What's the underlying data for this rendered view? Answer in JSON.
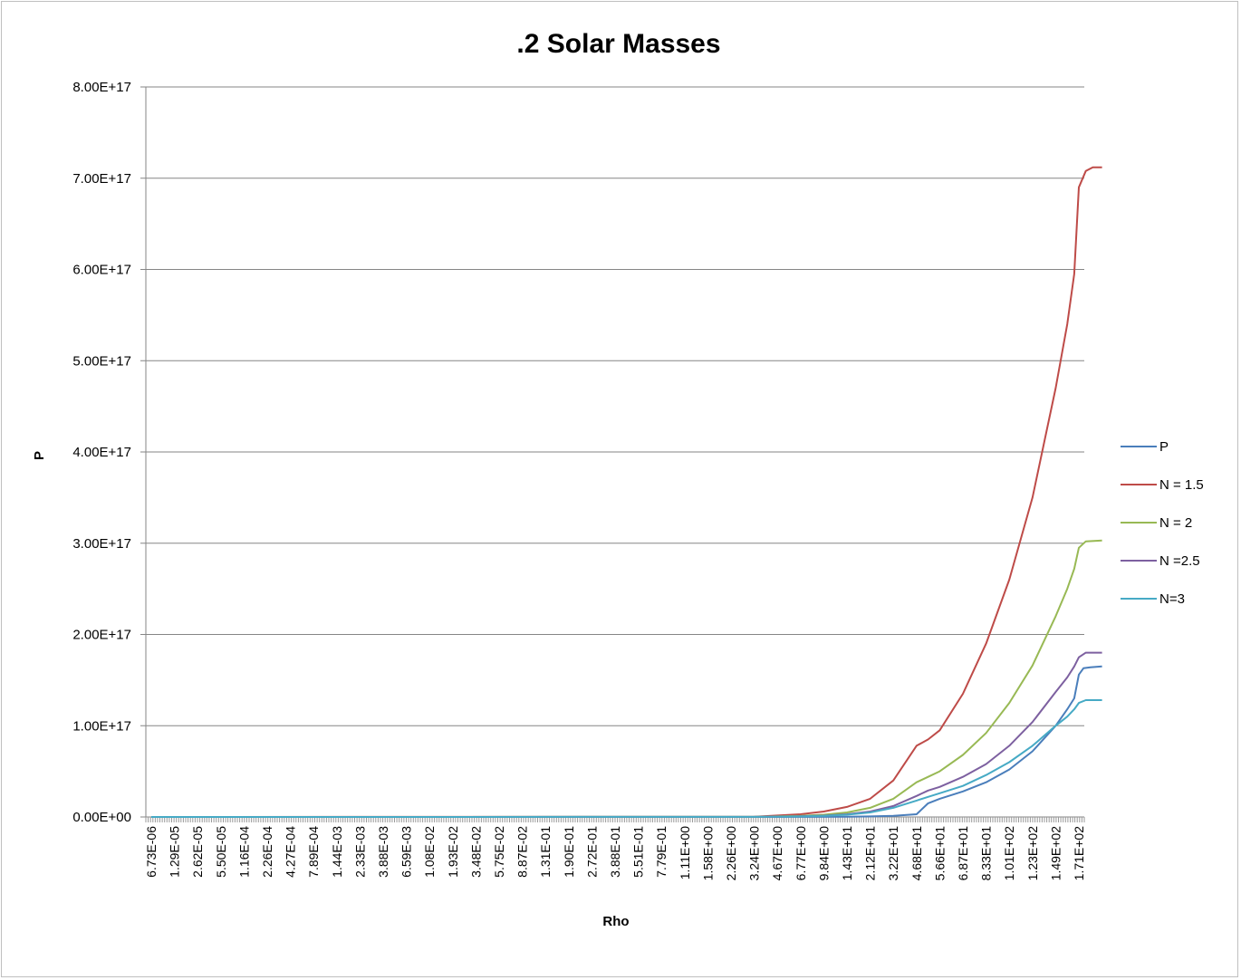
{
  "chart_data": {
    "type": "line",
    "title": ".2 Solar Masses",
    "xlabel": "Rho",
    "ylabel": "P",
    "ylim": [
      0,
      8e+17
    ],
    "yticks": [
      "0.00E+00",
      "1.00E+17",
      "2.00E+17",
      "3.00E+17",
      "4.00E+17",
      "5.00E+17",
      "6.00E+17",
      "7.00E+17",
      "8.00E+17"
    ],
    "x_tick_labels": [
      "6.73E-06",
      "1.29E-05",
      "2.62E-05",
      "5.50E-05",
      "1.16E-04",
      "2.26E-04",
      "4.27E-04",
      "7.89E-04",
      "1.44E-03",
      "2.33E-03",
      "3.88E-03",
      "6.59E-03",
      "1.08E-02",
      "1.93E-02",
      "3.48E-02",
      "5.75E-02",
      "8.87E-02",
      "1.31E-01",
      "1.90E-01",
      "2.72E-01",
      "3.88E-01",
      "5.51E-01",
      "7.79E-01",
      "1.11E+00",
      "1.58E+00",
      "2.26E+00",
      "3.24E+00",
      "4.67E+00",
      "6.77E+00",
      "9.84E+00",
      "1.43E+01",
      "2.12E+01",
      "3.22E+01",
      "4.68E+01",
      "5.66E+01",
      "6.87E+01",
      "8.33E+01",
      "1.01E+02",
      "1.23E+02",
      "1.49E+02",
      "1.71E+02"
    ],
    "grid": true,
    "legend_position": "right",
    "series": [
      {
        "name": "P",
        "color": "#4a7ebb",
        "points": [
          [
            0,
            0
          ],
          [
            26,
            30000000000000.0
          ],
          [
            28,
            100000000000000.0
          ],
          [
            30,
            300000000000000.0
          ],
          [
            31,
            600000000000000.0
          ],
          [
            32,
            1200000000000000.0
          ],
          [
            33,
            3000000000000000.0
          ],
          [
            33.5,
            1.5e+16
          ],
          [
            34,
            2e+16
          ],
          [
            35,
            2.8e+16
          ],
          [
            36,
            3.8e+16
          ],
          [
            37,
            5.2e+16
          ],
          [
            38,
            7.2e+16
          ],
          [
            39,
            1e+17
          ],
          [
            39.5,
            1.18e+17
          ],
          [
            39.8,
            1.3e+17
          ],
          [
            40,
            1.56e+17
          ],
          [
            40.2,
            1.63e+17
          ],
          [
            40.5,
            1.64e+17
          ],
          [
            41,
            1.65e+17
          ]
        ]
      },
      {
        "name": "N = 1.5",
        "color": "#be4b48",
        "points": [
          [
            0,
            0
          ],
          [
            26,
            200000000000000.0
          ],
          [
            28,
            3000000000000000.0
          ],
          [
            29,
            6000000000000000.0
          ],
          [
            30,
            1.1e+16
          ],
          [
            31,
            2e+16
          ],
          [
            32,
            4e+16
          ],
          [
            33,
            7.8e+16
          ],
          [
            33.5,
            8.5e+16
          ],
          [
            34,
            9.5e+16
          ],
          [
            35,
            1.35e+17
          ],
          [
            36,
            1.9e+17
          ],
          [
            37,
            2.6e+17
          ],
          [
            38,
            3.5e+17
          ],
          [
            39,
            4.7e+17
          ],
          [
            39.5,
            5.4e+17
          ],
          [
            39.8,
            5.95e+17
          ],
          [
            40,
            6.9e+17
          ],
          [
            40.3,
            7.08e+17
          ],
          [
            40.6,
            7.12e+17
          ],
          [
            41,
            7.12e+17
          ]
        ]
      },
      {
        "name": "N = 2",
        "color": "#98b954",
        "points": [
          [
            0,
            0
          ],
          [
            26,
            100000000000000.0
          ],
          [
            28,
            1200000000000000.0
          ],
          [
            29,
            2500000000000000.0
          ],
          [
            30,
            5000000000000000.0
          ],
          [
            31,
            1e+16
          ],
          [
            32,
            2e+16
          ],
          [
            33,
            3.8e+16
          ],
          [
            33.5,
            4.4e+16
          ],
          [
            34,
            5e+16
          ],
          [
            35,
            6.8e+16
          ],
          [
            36,
            9.2e+16
          ],
          [
            37,
            1.25e+17
          ],
          [
            38,
            1.66e+17
          ],
          [
            39,
            2.2e+17
          ],
          [
            39.5,
            2.5e+17
          ],
          [
            39.8,
            2.72e+17
          ],
          [
            40,
            2.95e+17
          ],
          [
            40.3,
            3.02e+17
          ],
          [
            41,
            3.03e+17
          ]
        ]
      },
      {
        "name": "N =2.5",
        "color": "#7d60a0",
        "points": [
          [
            0,
            0
          ],
          [
            26,
            70000000000000.0
          ],
          [
            28,
            800000000000000.0
          ],
          [
            29,
            1500000000000000.0
          ],
          [
            30,
            3000000000000000.0
          ],
          [
            31,
            6000000000000000.0
          ],
          [
            32,
            1.2e+16
          ],
          [
            33,
            2.3e+16
          ],
          [
            33.5,
            2.9e+16
          ],
          [
            34,
            3.3e+16
          ],
          [
            35,
            4.4e+16
          ],
          [
            36,
            5.8e+16
          ],
          [
            37,
            7.8e+16
          ],
          [
            38,
            1.04e+17
          ],
          [
            39,
            1.37e+17
          ],
          [
            39.5,
            1.53e+17
          ],
          [
            39.8,
            1.65e+17
          ],
          [
            40,
            1.75e+17
          ],
          [
            40.3,
            1.8e+17
          ],
          [
            41,
            1.8e+17
          ]
        ]
      },
      {
        "name": "N=3",
        "color": "#46aac5",
        "points": [
          [
            0,
            0
          ],
          [
            26,
            50000000000000.0
          ],
          [
            28,
            600000000000000.0
          ],
          [
            29,
            1200000000000000.0
          ],
          [
            30,
            2500000000000000.0
          ],
          [
            31,
            5000000000000000.0
          ],
          [
            32,
            1e+16
          ],
          [
            33,
            1.8e+16
          ],
          [
            33.5,
            2.2e+16
          ],
          [
            34,
            2.6e+16
          ],
          [
            35,
            3.4e+16
          ],
          [
            36,
            4.6e+16
          ],
          [
            37,
            6e+16
          ],
          [
            38,
            7.8e+16
          ],
          [
            39,
            1e+17
          ],
          [
            39.5,
            1.1e+17
          ],
          [
            39.8,
            1.18e+17
          ],
          [
            40,
            1.25e+17
          ],
          [
            40.3,
            1.28e+17
          ],
          [
            41,
            1.28e+17
          ]
        ]
      }
    ]
  }
}
